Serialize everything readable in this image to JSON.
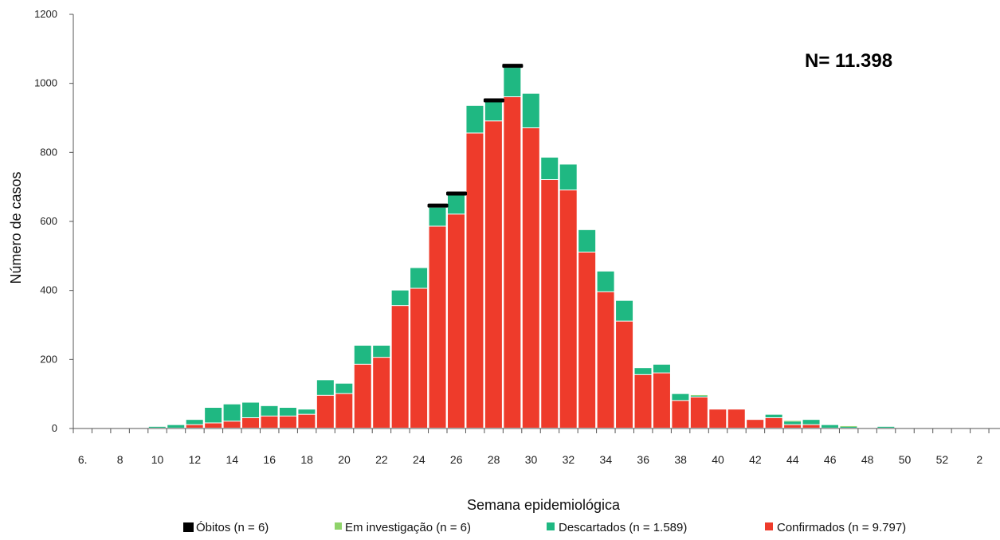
{
  "chart_data": {
    "type": "bar",
    "stacked": true,
    "xlabel": "Semana epidemiológica",
    "ylabel": "Número de casos",
    "ylim": [
      0,
      1200
    ],
    "yticks": [
      0,
      200,
      400,
      600,
      800,
      1000,
      1200
    ],
    "annotation": "N= 11.398",
    "categories": [
      "6",
      "7",
      "8",
      "9",
      "10",
      "11",
      "12",
      "13",
      "14",
      "15",
      "16",
      "17",
      "18",
      "19",
      "20",
      "21",
      "22",
      "23",
      "24",
      "25",
      "26",
      "27",
      "28",
      "29",
      "30",
      "31",
      "32",
      "33",
      "34",
      "35",
      "36",
      "37",
      "38",
      "39",
      "40",
      "41",
      "42",
      "43",
      "44",
      "45",
      "46",
      "47",
      "48",
      "49",
      "50",
      "51",
      "52",
      "1",
      "2",
      "3"
    ],
    "tick_labels": [
      {
        "category": "6",
        "label": "6."
      },
      {
        "category": "8",
        "label": "8"
      },
      {
        "category": "10",
        "label": "10"
      },
      {
        "category": "12",
        "label": "12"
      },
      {
        "category": "14",
        "label": "14"
      },
      {
        "category": "16",
        "label": "16"
      },
      {
        "category": "18",
        "label": "18"
      },
      {
        "category": "20",
        "label": "20"
      },
      {
        "category": "22",
        "label": "22"
      },
      {
        "category": "24",
        "label": "24"
      },
      {
        "category": "26",
        "label": "26"
      },
      {
        "category": "28",
        "label": "28"
      },
      {
        "category": "30",
        "label": "30"
      },
      {
        "category": "32",
        "label": "32"
      },
      {
        "category": "34",
        "label": "34"
      },
      {
        "category": "36",
        "label": "36"
      },
      {
        "category": "38",
        "label": "38"
      },
      {
        "category": "40",
        "label": "40"
      },
      {
        "category": "42",
        "label": "42"
      },
      {
        "category": "44",
        "label": "44"
      },
      {
        "category": "46",
        "label": "46"
      },
      {
        "category": "48",
        "label": "48"
      },
      {
        "category": "50",
        "label": "50"
      },
      {
        "category": "52",
        "label": "52"
      },
      {
        "category": "2",
        "label": "2"
      }
    ],
    "series": [
      {
        "name": "Confirmados (n = 9.797)",
        "key": "confirmados",
        "color": "#ee3b2b",
        "values": [
          0,
          0,
          0,
          0,
          0,
          0,
          10,
          15,
          20,
          30,
          35,
          35,
          40,
          95,
          100,
          185,
          205,
          355,
          405,
          585,
          620,
          855,
          890,
          960,
          870,
          720,
          690,
          510,
          395,
          310,
          155,
          160,
          80,
          90,
          55,
          55,
          25,
          30,
          10,
          10,
          0,
          0,
          0,
          0,
          0,
          0,
          0,
          0,
          0,
          0
        ]
      },
      {
        "name": "Descartados (n = 1.589)",
        "key": "descartados",
        "color": "#1fb882",
        "values": [
          0,
          0,
          0,
          0,
          5,
          10,
          15,
          45,
          50,
          45,
          30,
          25,
          15,
          45,
          30,
          55,
          35,
          45,
          60,
          55,
          55,
          80,
          55,
          85,
          100,
          65,
          75,
          65,
          60,
          60,
          20,
          25,
          20,
          5,
          0,
          0,
          0,
          10,
          10,
          15,
          10,
          5,
          0,
          5,
          0,
          0,
          0,
          0,
          0,
          0
        ]
      },
      {
        "name": "Em investigação (n = 6)",
        "key": "investigacao",
        "color": "#8fd36a",
        "values": [
          0,
          0,
          0,
          0,
          0,
          0,
          0,
          0,
          0,
          0,
          0,
          0,
          0,
          0,
          0,
          0,
          0,
          0,
          0,
          0,
          0,
          0,
          0,
          0,
          0,
          0,
          0,
          0,
          0,
          0,
          0,
          0,
          0,
          2,
          0,
          0,
          0,
          0,
          2,
          0,
          0,
          2,
          0,
          0,
          0,
          0,
          0,
          0,
          0,
          0
        ]
      },
      {
        "name": "Óbitos (n = 6)",
        "key": "obitos",
        "color": "#000000",
        "weeks": [
          "25",
          "26",
          "28",
          "29"
        ]
      }
    ],
    "legend": [
      "Óbitos (n = 6)",
      "Em investigação (n = 6)",
      "Descartados (n = 1.589)",
      "Confirmados (n = 9.797)"
    ],
    "legend_position": "bottom",
    "grid": false
  }
}
